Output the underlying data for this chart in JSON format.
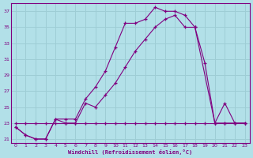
{
  "xlabel": "Windchill (Refroidissement éolien,°C)",
  "background_color": "#b2e0e8",
  "line_color": "#800080",
  "grid_color": "#9ecdd5",
  "ylim": [
    20.5,
    38
  ],
  "xlim": [
    -0.5,
    23.5
  ],
  "yticks": [
    21,
    23,
    25,
    27,
    29,
    31,
    33,
    35,
    37
  ],
  "xticks": [
    0,
    1,
    2,
    3,
    4,
    5,
    6,
    7,
    8,
    9,
    10,
    11,
    12,
    13,
    14,
    15,
    16,
    17,
    18,
    19,
    20,
    21,
    22,
    23
  ],
  "series1_x": [
    0,
    1,
    2,
    3,
    4,
    5,
    6,
    7,
    8,
    9,
    10,
    11,
    12,
    13,
    14,
    15,
    16,
    17,
    18,
    20,
    21,
    22,
    23
  ],
  "series1_y": [
    22.5,
    21.5,
    21.0,
    21.0,
    23.5,
    23.5,
    23.5,
    26.0,
    27.5,
    29.5,
    32.5,
    35.5,
    35.5,
    36.0,
    37.5,
    37.0,
    37.0,
    36.5,
    35.0,
    23.0,
    23.0,
    23.0,
    23.0
  ],
  "series2_x": [
    0,
    1,
    2,
    3,
    4,
    5,
    6,
    7,
    8,
    9,
    10,
    11,
    12,
    13,
    14,
    15,
    16,
    17,
    18,
    19,
    20,
    21,
    22,
    23
  ],
  "series2_y": [
    22.5,
    21.5,
    21.0,
    21.0,
    23.5,
    23.0,
    23.0,
    25.5,
    25.0,
    26.5,
    28.0,
    30.0,
    32.0,
    33.5,
    35.0,
    36.0,
    36.5,
    35.0,
    35.0,
    30.5,
    23.0,
    25.5,
    23.0,
    23.0
  ],
  "series3_x": [
    0,
    1,
    2,
    3,
    4,
    5,
    6,
    7,
    8,
    9,
    10,
    11,
    12,
    13,
    14,
    15,
    16,
    17,
    18,
    19,
    20,
    21,
    22,
    23
  ],
  "series3_y": [
    23.0,
    23.0,
    23.0,
    23.0,
    23.0,
    23.0,
    23.0,
    23.0,
    23.0,
    23.0,
    23.0,
    23.0,
    23.0,
    23.0,
    23.0,
    23.0,
    23.0,
    23.0,
    23.0,
    23.0,
    23.0,
    23.0,
    23.0,
    23.0
  ]
}
